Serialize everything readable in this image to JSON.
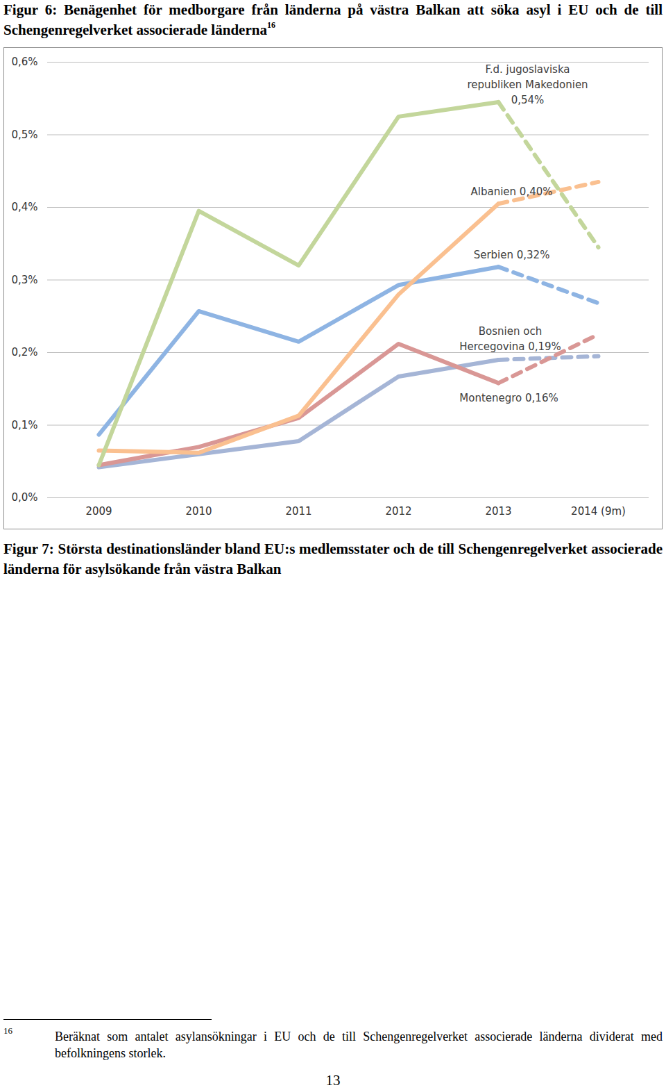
{
  "chart_data": {
    "type": "line",
    "title": "Figur 6: Benägenhet för medborgare från länderna på västra Balkan att söka asyl i EU och de till Schengenregelverket associerade länderna",
    "title_note": "16",
    "categories": [
      "2009",
      "2010",
      "2011",
      "2012",
      "2013",
      "2014 (9m)"
    ],
    "series": [
      {
        "name": "Bosnien och\nHercegovina 0,19%",
        "color": "#a5b5d6",
        "line_style": "dashed_last",
        "values": [
          0.042,
          0.06,
          0.078,
          0.167,
          0.19,
          0.195
        ]
      },
      {
        "name": "Montenegro 0,16%",
        "color": "#d99795",
        "line_style": "dashed_last",
        "values": [
          0.045,
          0.07,
          0.11,
          0.212,
          0.158,
          0.225
        ]
      },
      {
        "name": "Serbien 0,32%",
        "color": "#8eb4e3",
        "line_style": "dashed_last",
        "values": [
          0.087,
          0.257,
          0.215,
          0.293,
          0.318,
          0.268
        ]
      },
      {
        "name": "Albanien 0,40%",
        "color": "#fac090",
        "line_style": "dashed_last",
        "values": [
          0.065,
          0.062,
          0.113,
          0.28,
          0.405,
          0.435
        ]
      },
      {
        "name": "F.d. jugoslaviska\nrepubliken Makedonien\n0,54%",
        "color": "#c3d69b",
        "line_style": "dashed_last",
        "values": [
          0.045,
          0.395,
          0.32,
          0.525,
          0.545,
          0.345
        ]
      }
    ],
    "ylim": [
      0,
      0.6
    ],
    "yticks": [
      {
        "value": 0,
        "label": "0,0%"
      },
      {
        "value": 0.1,
        "label": "0,1%"
      },
      {
        "value": 0.2,
        "label": "0,2%"
      },
      {
        "value": 0.3,
        "label": "0,3%"
      },
      {
        "value": 0.4,
        "label": "0,4%"
      },
      {
        "value": 0.5,
        "label": "0,5%"
      },
      {
        "value": 0.6,
        "label": "0,6%"
      }
    ],
    "grid": true
  },
  "figure7": {
    "caption": "Figur 7: Största destinationsländer bland EU:s medlemsstater och de till Schengenregelverket associerade länderna för asylsökande från västra Balkan"
  },
  "footnote": {
    "mark": "16",
    "text": "Beräknat som antalet asylansökningar i EU och de till Schengenregelverket associerade länderna dividerat med befolkningens storlek."
  },
  "page_number": 13
}
